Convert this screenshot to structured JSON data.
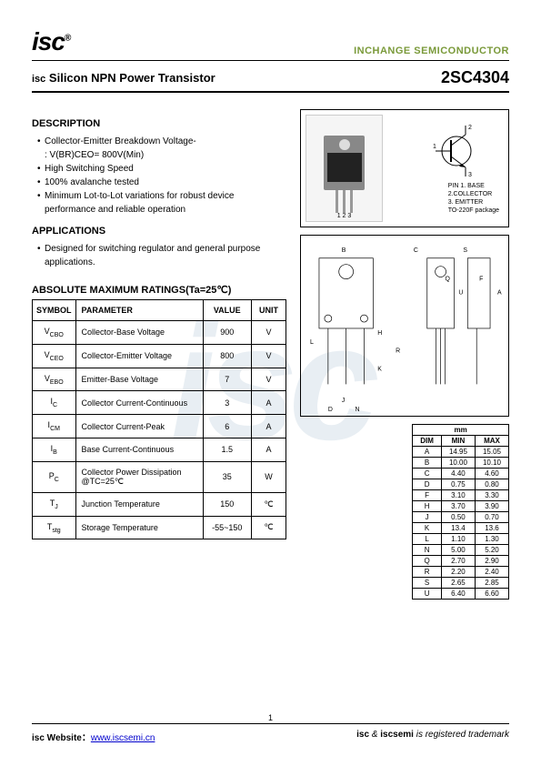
{
  "header": {
    "logo_text": "isc",
    "logo_reg": "®",
    "company": "INCHANGE SEMICONDUCTOR"
  },
  "title": {
    "prefix": "isc",
    "product": "Silicon NPN Power Transistor",
    "part_number": "2SC4304"
  },
  "description": {
    "heading": "DESCRIPTION",
    "items": [
      "Collector-Emitter Breakdown Voltage-",
      "High Switching Speed",
      "100% avalanche tested",
      "Minimum Lot-to-Lot variations for robust device performance and reliable operation"
    ],
    "sub_line": ": V(BR)CEO= 800V(Min)"
  },
  "applications": {
    "heading": "APPLICATIONS",
    "items": [
      "Designed for switching regulator and general purpose applications."
    ]
  },
  "pin_info": {
    "pins_num": "1  2  3",
    "pin_label": "PIN",
    "pin1": "1. BASE",
    "pin2": "2.COLLECTOR",
    "pin3": "3. EMITTER",
    "package": "TO-220F package"
  },
  "ratings": {
    "title": "ABSOLUTE MAXIMUM RATINGS(Ta=25℃)",
    "columns": [
      "SYMBOL",
      "PARAMETER",
      "VALUE",
      "UNIT"
    ],
    "rows": [
      {
        "symbol": "VCBO",
        "parameter": "Collector-Base Voltage",
        "value": "900",
        "unit": "V"
      },
      {
        "symbol": "VCEO",
        "parameter": "Collector-Emitter Voltage",
        "value": "800",
        "unit": "V"
      },
      {
        "symbol": "VEBO",
        "parameter": "Emitter-Base Voltage",
        "value": "7",
        "unit": "V"
      },
      {
        "symbol": "IC",
        "parameter": "Collector Current-Continuous",
        "value": "3",
        "unit": "A"
      },
      {
        "symbol": "ICM",
        "parameter": "Collector Current-Peak",
        "value": "6",
        "unit": "A"
      },
      {
        "symbol": "IB",
        "parameter": "Base Current-Continuous",
        "value": "1.5",
        "unit": "A"
      },
      {
        "symbol": "PC",
        "parameter": "Collector Power Dissipation @TC=25℃",
        "value": "35",
        "unit": "W"
      },
      {
        "symbol": "TJ",
        "parameter": "Junction Temperature",
        "value": "150",
        "unit": "℃"
      },
      {
        "symbol": "Tstg",
        "parameter": "Storage Temperature",
        "value": "-55~150",
        "unit": "℃"
      }
    ]
  },
  "dimensions": {
    "header_unit": "mm",
    "columns": [
      "DIM",
      "MIN",
      "MAX"
    ],
    "rows": [
      [
        "A",
        "14.95",
        "15.05"
      ],
      [
        "B",
        "10.00",
        "10.10"
      ],
      [
        "C",
        "4.40",
        "4.60"
      ],
      [
        "D",
        "0.75",
        "0.80"
      ],
      [
        "F",
        "3.10",
        "3.30"
      ],
      [
        "H",
        "3.70",
        "3.90"
      ],
      [
        "J",
        "0.50",
        "0.70"
      ],
      [
        "K",
        "13.4",
        "13.6"
      ],
      [
        "L",
        "1.10",
        "1.30"
      ],
      [
        "N",
        "5.00",
        "5.20"
      ],
      [
        "Q",
        "2.70",
        "2.90"
      ],
      [
        "R",
        "2.20",
        "2.40"
      ],
      [
        "S",
        "2.65",
        "2.85"
      ],
      [
        "U",
        "6.40",
        "6.60"
      ]
    ]
  },
  "footer": {
    "left_label": "isc Website：",
    "url": "www.iscsemi.cn",
    "page": "1",
    "right_text": "isc & iscsemi is registered trademark",
    "right_bold1": "isc",
    "right_bold2": "iscsemi",
    "right_rest": " is registered trademark"
  },
  "watermark": "isc",
  "colors": {
    "green": "#7a9a3a",
    "link": "#0000cc",
    "watermark": "#e8eef3"
  }
}
